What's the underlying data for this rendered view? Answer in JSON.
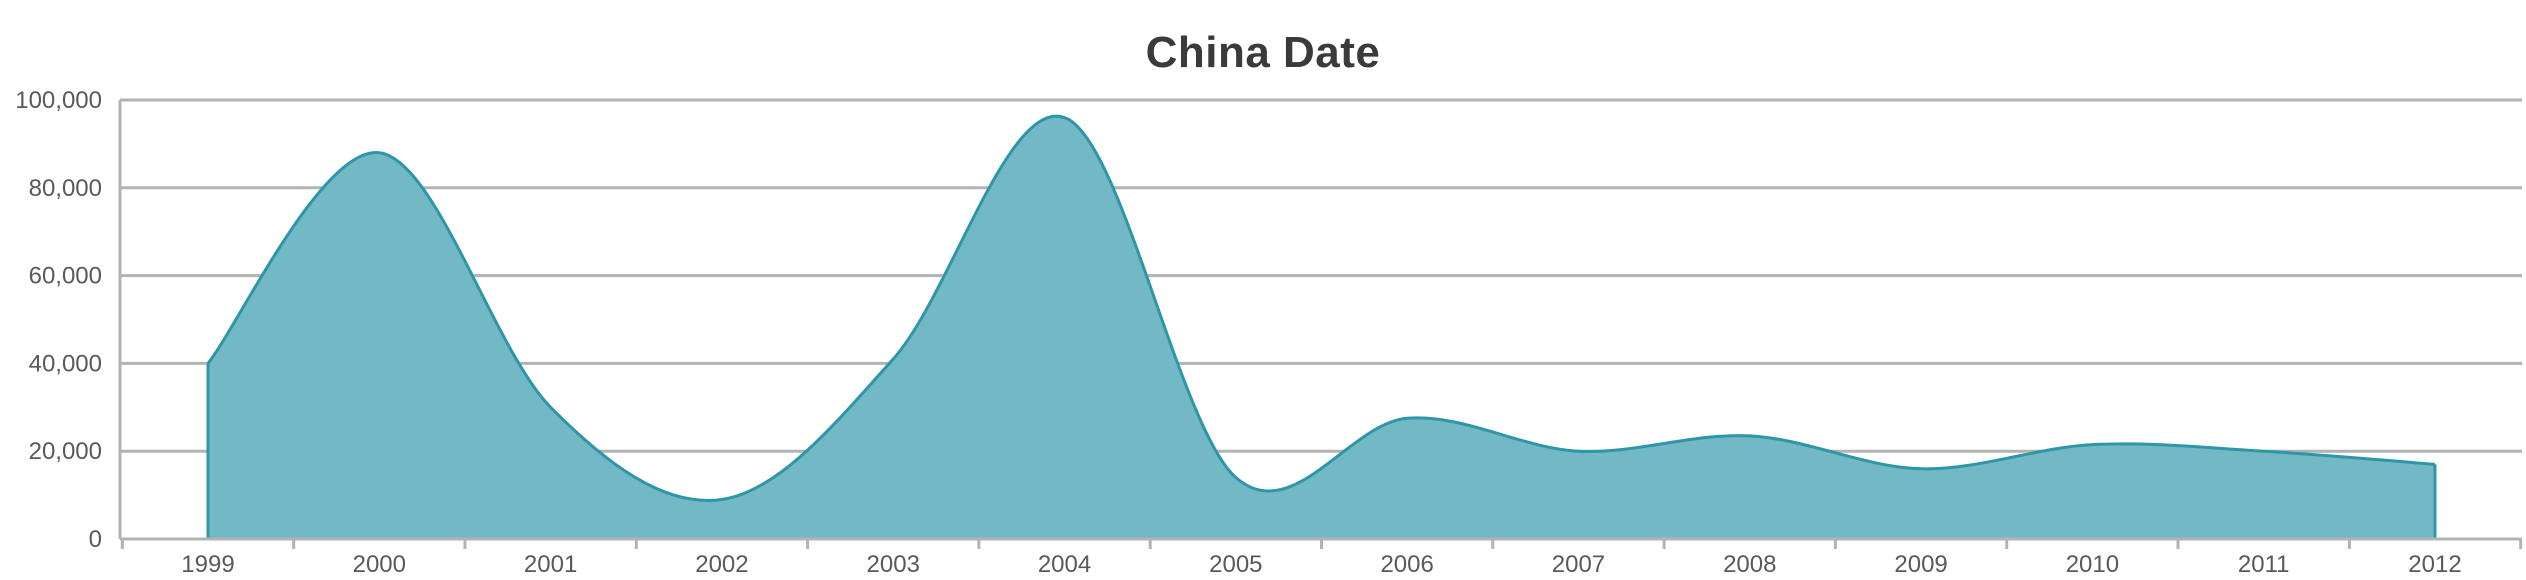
{
  "chart_data": {
    "type": "area",
    "title": "China Date",
    "xlabel": "",
    "ylabel": "",
    "categories": [
      "1999",
      "2000",
      "2001",
      "2002",
      "2003",
      "2004",
      "2005",
      "2006",
      "2007",
      "2008",
      "2009",
      "2010",
      "2011",
      "2012"
    ],
    "values": [
      40000,
      88000,
      30000,
      9000,
      41000,
      96000,
      14000,
      27500,
      20000,
      23500,
      16000,
      21500,
      20000,
      17000
    ],
    "ylim": [
      0,
      100000
    ],
    "yticks": [
      0,
      20000,
      40000,
      60000,
      80000,
      100000
    ],
    "ytick_labels": [
      "0",
      "20,000",
      "40,000",
      "60,000",
      "80,000",
      "100,000"
    ],
    "grid": true,
    "legend": "none",
    "colors": {
      "fill": "#72b8c5",
      "stroke": "#2e96a6",
      "grid": "#b3b3b3",
      "text": "#595959"
    }
  }
}
